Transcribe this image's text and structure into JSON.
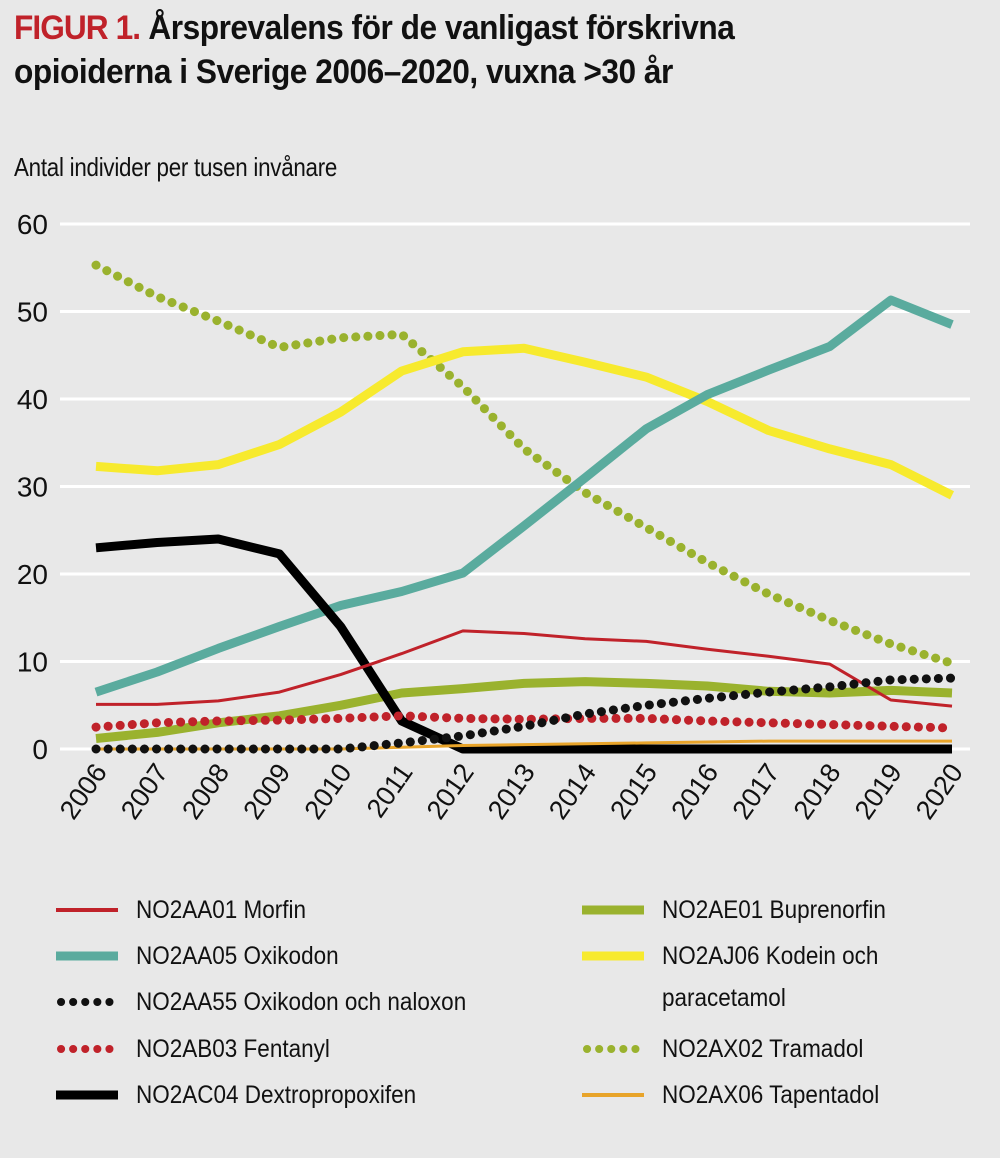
{
  "title": {
    "figure_label": "FIGUR 1.",
    "text_line1": "Årsprevalens för de vanligast förskrivna",
    "text_line2": "opioiderna i Sverige 2006–2020, vuxna >30 år"
  },
  "chart_data": {
    "type": "line",
    "title": "FIGUR 1. Årsprevalens för de vanligast förskrivna opioiderna i Sverige 2006–2020, vuxna >30 år",
    "xlabel": "",
    "ylabel": "Antal individer per tusen invånare",
    "ylim": [
      0,
      60
    ],
    "yticks": [
      0,
      10,
      20,
      30,
      40,
      50,
      60
    ],
    "grid": "horizontal",
    "legend_position": "bottom",
    "x": [
      "2006",
      "2007",
      "2008",
      "2009",
      "2010",
      "2011",
      "2012",
      "2013",
      "2014",
      "2015",
      "2016",
      "2017",
      "2018",
      "2019",
      "2020"
    ],
    "series": [
      {
        "name": "NO2AA01 Morfin",
        "color": "#c0222a",
        "style": "solid-thin",
        "values": [
          5.1,
          5.1,
          5.5,
          6.5,
          8.5,
          10.9,
          13.5,
          13.2,
          12.6,
          12.3,
          11.4,
          10.6,
          9.7,
          5.6,
          4.9
        ]
      },
      {
        "name": "NO2AA05 Oxikodon",
        "color": "#5aab9e",
        "style": "solid-thick",
        "values": [
          6.5,
          8.8,
          11.5,
          14.0,
          16.4,
          18.0,
          20.1,
          25.5,
          31.0,
          36.6,
          40.5,
          43.3,
          46.0,
          51.3,
          48.5
        ]
      },
      {
        "name": "NO2AA55 Oxikodon och naloxon",
        "color": "#111111",
        "style": "dotted",
        "values": [
          0.0,
          0.0,
          0.0,
          0.0,
          0.0,
          0.7,
          1.5,
          2.6,
          4.0,
          5.0,
          5.8,
          6.5,
          7.1,
          7.9,
          8.1
        ]
      },
      {
        "name": "NO2AB03 Fentanyl",
        "color": "#c0222a",
        "style": "dotted",
        "values": [
          2.5,
          3.0,
          3.2,
          3.3,
          3.5,
          3.8,
          3.5,
          3.4,
          3.5,
          3.5,
          3.2,
          3.0,
          2.8,
          2.6,
          2.4
        ]
      },
      {
        "name": "NO2AC04 Dextropropoxifen",
        "color": "#000000",
        "style": "solid-thick",
        "values": [
          23.0,
          23.6,
          24.0,
          22.3,
          14.0,
          3.2,
          0.0,
          0.0,
          0.0,
          0.0,
          0.0,
          0.0,
          0.0,
          0.0,
          0.0
        ]
      },
      {
        "name": "NO2AE01 Buprenorfin",
        "color": "#9ab22e",
        "style": "solid-thick",
        "values": [
          1.2,
          1.9,
          3.0,
          3.8,
          5.0,
          6.4,
          6.9,
          7.5,
          7.7,
          7.5,
          7.2,
          6.6,
          6.4,
          6.7,
          6.4
        ]
      },
      {
        "name": "NO2AJ06 Kodein och paracetamol",
        "color": "#f7ea2e",
        "style": "solid-thick",
        "values": [
          32.3,
          31.8,
          32.5,
          34.8,
          38.5,
          43.2,
          45.4,
          45.8,
          44.2,
          42.5,
          39.7,
          36.4,
          34.3,
          32.5,
          29.0
        ]
      },
      {
        "name": "NO2AX02 Tramadol",
        "color": "#9ab22e",
        "style": "dotted",
        "values": [
          55.3,
          51.7,
          48.9,
          45.9,
          47.0,
          47.4,
          41.4,
          34.3,
          29.3,
          25.3,
          21.3,
          17.7,
          14.7,
          12.0,
          9.8
        ]
      },
      {
        "name": "NO2AX06 Tapentadol",
        "color": "#e8a42a",
        "style": "solid-thin",
        "values": [
          0.0,
          0.0,
          0.0,
          0.0,
          0.0,
          0.2,
          0.4,
          0.5,
          0.6,
          0.7,
          0.8,
          0.9,
          0.9,
          0.9,
          0.9
        ]
      }
    ]
  },
  "legend": {
    "items": [
      {
        "label": "NO2AA01 Morfin",
        "column": "left"
      },
      {
        "label": "NO2AA05 Oxikodon",
        "column": "left"
      },
      {
        "label": "NO2AA55 Oxikodon och naloxon",
        "column": "left"
      },
      {
        "label": "NO2AB03 Fentanyl",
        "column": "left"
      },
      {
        "label": "NO2AC04 Dextropropoxifen",
        "column": "left"
      },
      {
        "label": "NO2AE01 Buprenorfin",
        "column": "right"
      },
      {
        "label": "NO2AJ06 Kodein och\nparacetamol",
        "column": "right"
      },
      {
        "label": "NO2AX02 Tramadol",
        "column": "right"
      },
      {
        "label": "NO2AX06 Tapentadol",
        "column": "right"
      }
    ]
  }
}
